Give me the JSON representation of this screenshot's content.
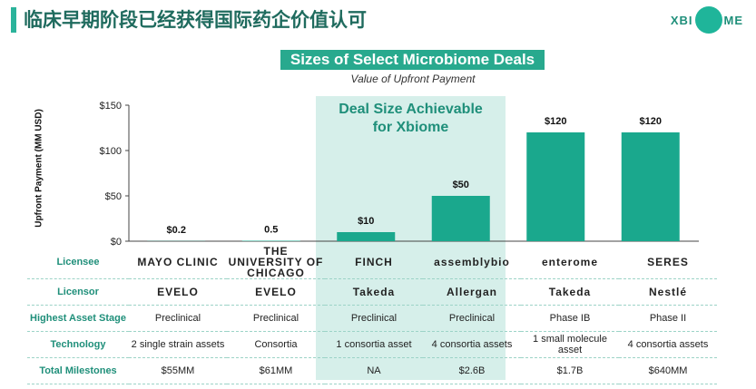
{
  "slide": {
    "title": "临床早期阶段已经获得国际药企价值认可",
    "logo_left": "XBI",
    "logo_right": "ME",
    "accent_color": "#2bb39b"
  },
  "chart_data": {
    "type": "bar",
    "title": "Sizes of Select Microbiome Deals",
    "subtitle": "Value of Upfront Payment",
    "ylabel": "Upfront Payment (MM USD)",
    "xlabel": "",
    "ylim": [
      0,
      150
    ],
    "yticks": [
      "$0",
      "$50",
      "$100",
      "$150"
    ],
    "ytick_values": [
      0,
      50,
      100,
      150
    ],
    "values": [
      0.2,
      0.5,
      10,
      50,
      120,
      120
    ],
    "value_labels": [
      "$0.2",
      "0.5",
      "$10",
      "$50",
      "$120",
      "$120"
    ],
    "bar_color": "#1aa88d",
    "highlight_label_line1": "Deal Size Achievable",
    "highlight_label_line2": "for Xbiome",
    "highlight_color": "#d6efea",
    "grid": false
  },
  "table": {
    "row_headers": [
      "Licensee",
      "Licensor",
      "Highest Asset Stage",
      "Technology",
      "Total Milestones"
    ],
    "licensee": [
      "MAYO CLINIC",
      "THE UNIVERSITY OF CHICAGO",
      "FINCH",
      "assemblybio",
      "enterome",
      "SERES"
    ],
    "licensor": [
      "EVELO",
      "EVELO",
      "Takeda",
      "Allergan",
      "Takeda",
      "Nestlé"
    ],
    "stage": [
      "Preclinical",
      "Preclinical",
      "Preclinical",
      "Preclinical",
      "Phase IB",
      "Phase II"
    ],
    "technology": [
      "2 single strain assets",
      "Consortia",
      "1 consortia asset",
      "4 consortia assets",
      "1 small molecule asset",
      "4 consortia assets"
    ],
    "milestones": [
      "$55MM",
      "$61MM",
      "NA",
      "$2.6B",
      "$1.7B",
      "$640MM"
    ]
  }
}
